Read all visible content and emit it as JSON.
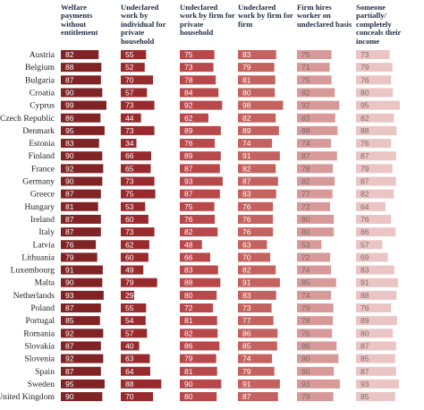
{
  "chart_data": {
    "type": "bar",
    "categories": [
      "Austria",
      "Belgium",
      "Bulgaria",
      "Croatia",
      "Cyprus",
      "Czech Republic",
      "Denmark",
      "Estonia",
      "Finland",
      "France",
      "Germany",
      "Greece",
      "Hungary",
      "Ireland",
      "Italy",
      "Latvia",
      "Lithuania",
      "Luxembourg",
      "Malta",
      "Netherlands",
      "Poland",
      "Portugal",
      "Romania",
      "Slovakia",
      "Slovenia",
      "Spain",
      "Sweden",
      "United Kingdom"
    ],
    "series": [
      {
        "name": "Welfare payments without entitlement",
        "color": "#7f2325",
        "values": [
          82,
          88,
          87,
          90,
          99,
          86,
          95,
          83,
          90,
          92,
          90,
          87,
          81,
          87,
          87,
          76,
          79,
          91,
          90,
          93,
          87,
          85,
          92,
          87,
          92,
          87,
          95,
          90
        ]
      },
      {
        "name": "Undeclared work by individual for private household",
        "color": "#98292c",
        "values": [
          55,
          52,
          70,
          57,
          73,
          44,
          73,
          34,
          66,
          65,
          73,
          75,
          53,
          60,
          73,
          62,
          60,
          49,
          79,
          29,
          55,
          54,
          57,
          40,
          63,
          64,
          88,
          70
        ]
      },
      {
        "name": "Undeclared work by firm for private household",
        "color": "#b8484a",
        "values": [
          75,
          73,
          78,
          84,
          92,
          62,
          89,
          76,
          89,
          87,
          93,
          87,
          75,
          76,
          82,
          48,
          66,
          83,
          88,
          80,
          72,
          81,
          82,
          86,
          79,
          81,
          90,
          80
        ]
      },
      {
        "name": "Undeclared work by firm for firm",
        "color": "#c4625f",
        "values": [
          83,
          79,
          81,
          80,
          98,
          82,
          89,
          74,
          91,
          82,
          87,
          83,
          76,
          76,
          76,
          63,
          70,
          82,
          91,
          83,
          73,
          77,
          86,
          85,
          74,
          79,
          91,
          87
        ]
      },
      {
        "name": "Firm hires worker on undeclared basis",
        "color": "#d89a99",
        "values": [
          75,
          71,
          75,
          82,
          92,
          83,
          88,
          74,
          87,
          78,
          82,
          77,
          72,
          80,
          80,
          53,
          72,
          74,
          85,
          74,
          79,
          78,
          76,
          86,
          90,
          80,
          93,
          79
        ]
      },
      {
        "name": "Someone partially/ completely conceals their income",
        "color": "#ebc4c4",
        "values": [
          73,
          79,
          76,
          80,
          95,
          82,
          88,
          76,
          87,
          79,
          87,
          82,
          64,
          76,
          86,
          57,
          69,
          83,
          91,
          88,
          76,
          89,
          80,
          87,
          85,
          87,
          93,
          85
        ]
      }
    ]
  }
}
